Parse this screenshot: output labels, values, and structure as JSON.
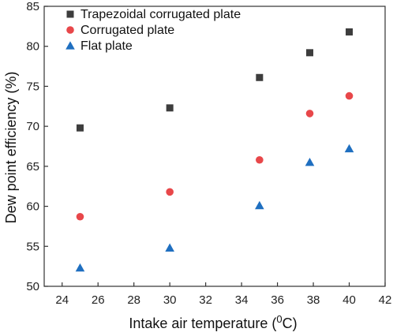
{
  "chart_data": {
    "type": "scatter",
    "xlabel": "Intake air temperature (",
    "xlabel_sup": "0",
    "xlabel_unit": "C)",
    "ylabel": "Dew point efficiency (%)",
    "xlim": [
      23,
      42
    ],
    "ylim": [
      50,
      85
    ],
    "x_ticks": [
      24,
      26,
      28,
      30,
      32,
      34,
      36,
      38,
      40,
      42
    ],
    "y_ticks": [
      50,
      55,
      60,
      65,
      70,
      75,
      80,
      85
    ],
    "legend_position": "top-left",
    "grid": false,
    "series": [
      {
        "name": "Trapezoidal corrugated plate",
        "marker": "square",
        "color": "#3d3d3d",
        "points": [
          [
            25,
            69.8
          ],
          [
            30,
            72.3
          ],
          [
            35,
            76.1
          ],
          [
            37.8,
            79.2
          ],
          [
            40,
            81.8
          ]
        ]
      },
      {
        "name": "Corrugated plate",
        "marker": "circle",
        "color": "#e8474a",
        "points": [
          [
            25,
            58.7
          ],
          [
            30,
            61.8
          ],
          [
            35,
            65.8
          ],
          [
            37.8,
            71.6
          ],
          [
            40,
            73.8
          ]
        ]
      },
      {
        "name": "Flat plate",
        "marker": "triangle",
        "color": "#1f6fc0",
        "points": [
          [
            25,
            52.3
          ],
          [
            30,
            54.8
          ],
          [
            35,
            60.1
          ],
          [
            37.8,
            65.5
          ],
          [
            40,
            67.2
          ]
        ]
      }
    ]
  }
}
